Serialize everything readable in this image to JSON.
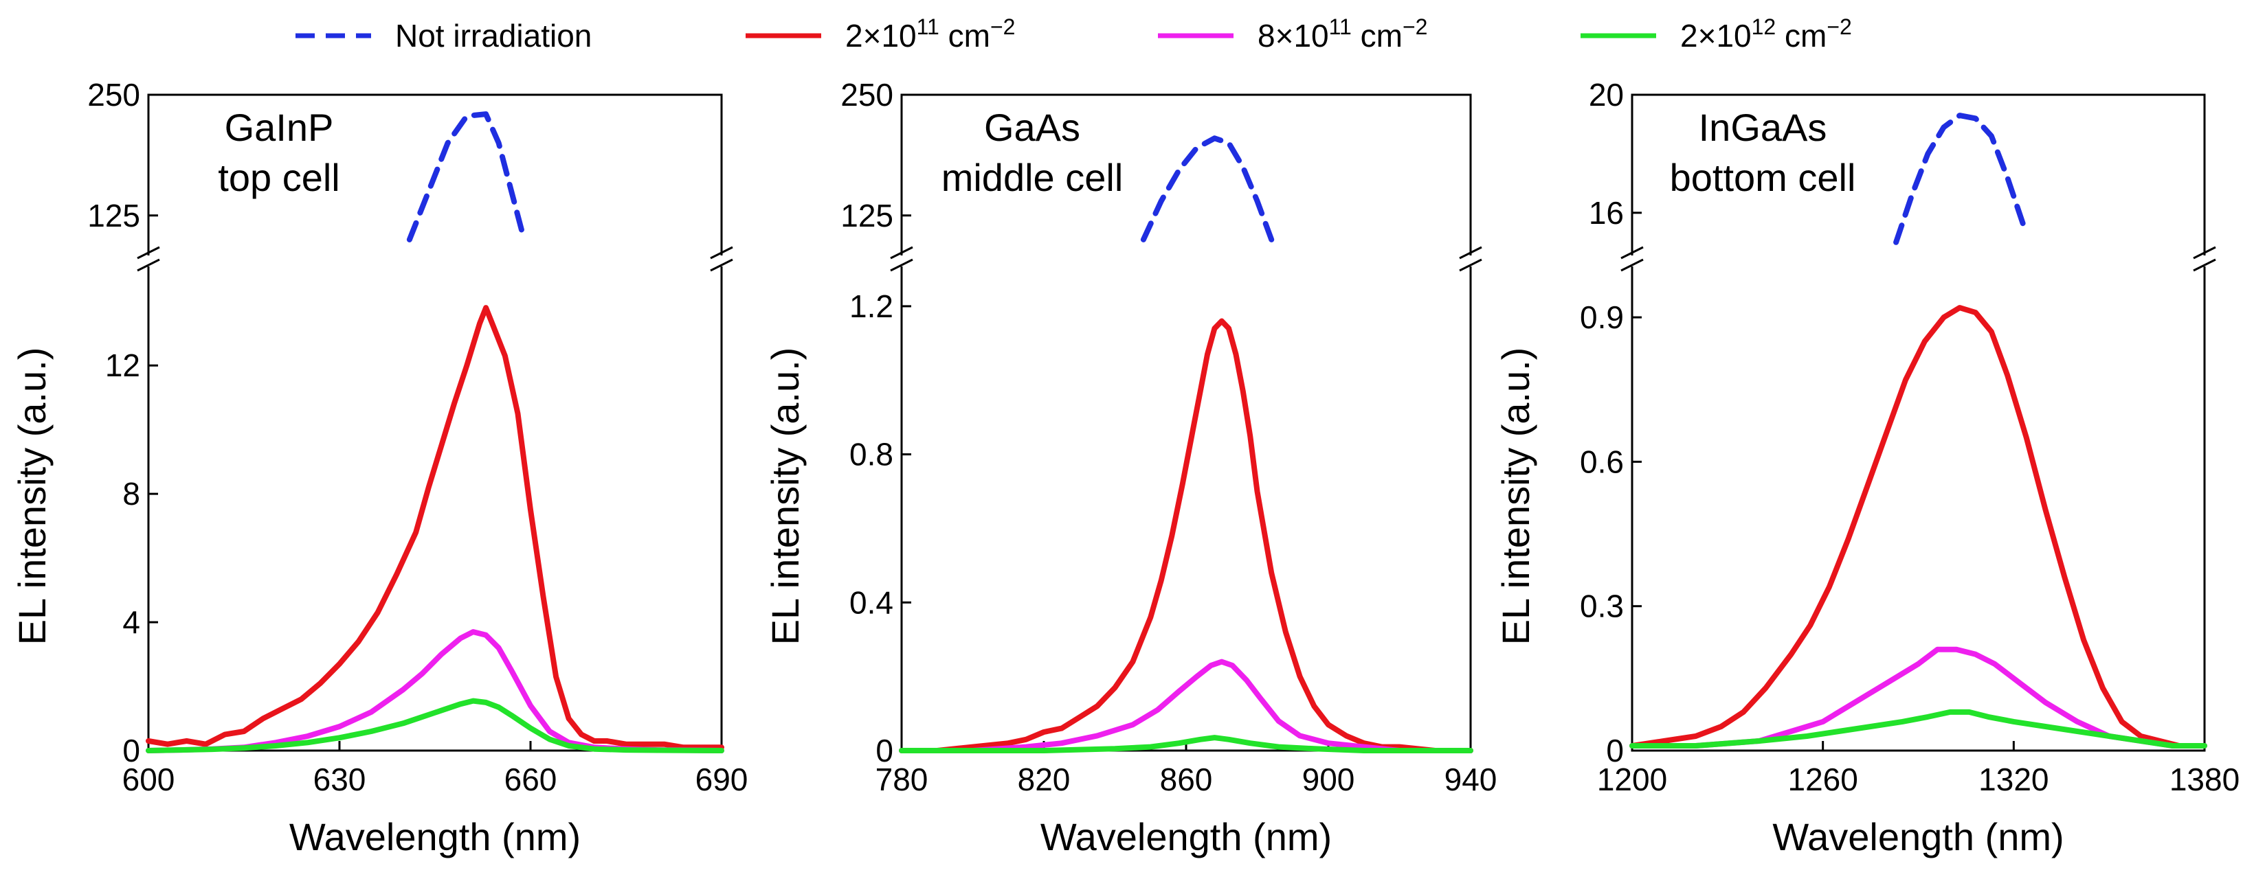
{
  "colors": {
    "not_irradiated": "#1f2ee0",
    "fluence_2e11": "#e8141b",
    "fluence_8e11": "#ee20ee",
    "fluence_2e12": "#22e22a"
  },
  "legend": [
    {
      "key": "not_irradiated",
      "label": "Not irradiation",
      "style": "dashed"
    },
    {
      "key": "fluence_2e11",
      "label": "2×10",
      "sup": "11",
      "unit": " cm",
      "unit_sup": "−2",
      "style": "solid"
    },
    {
      "key": "fluence_8e11",
      "label": "8×10",
      "sup": "11",
      "unit": " cm",
      "unit_sup": "−2",
      "style": "solid"
    },
    {
      "key": "fluence_2e12",
      "label": "2×10",
      "sup": "12",
      "unit": " cm",
      "unit_sup": "−2",
      "style": "solid"
    }
  ],
  "chart_data": [
    {
      "type": "line",
      "panel": "GaInP",
      "label_line1": "GaInP",
      "label_line2": "top cell",
      "xlabel": "Wavelength (nm)",
      "ylabel": "EL intensity (a.u.)",
      "xlim": [
        600,
        690
      ],
      "xticks": [
        600,
        630,
        660,
        690
      ],
      "xtick_labels": [
        "600",
        "630",
        "660",
        "690"
      ],
      "ylim_lower": [
        0,
        15
      ],
      "yticks_lower": [
        0,
        4,
        8,
        12
      ],
      "ytick_labels_lower": [
        "0",
        "4",
        "8",
        "12"
      ],
      "ylim_upper": [
        85,
        250
      ],
      "yticks_upper": [
        125,
        250
      ],
      "ytick_labels_upper": [
        "125",
        "250"
      ],
      "series": [
        {
          "name": "Not irradiation",
          "key": "not_irradiated",
          "axis": "upper",
          "x": [
            641,
            644,
            647,
            650,
            653,
            655,
            657,
            659
          ],
          "y": [
            100,
            150,
            200,
            228,
            230,
            200,
            150,
            100
          ]
        },
        {
          "name": "2×10^11 cm^-2",
          "key": "fluence_2e11",
          "axis": "lower",
          "x": [
            600,
            603,
            606,
            609,
            612,
            615,
            618,
            621,
            624,
            627,
            630,
            633,
            636,
            639,
            642,
            644,
            646,
            648,
            650,
            652,
            653,
            654,
            656,
            658,
            660,
            662,
            664,
            666,
            668,
            670,
            672,
            675,
            678,
            681,
            684,
            687,
            690
          ],
          "y": [
            0.3,
            0.2,
            0.3,
            0.2,
            0.5,
            0.6,
            1.0,
            1.3,
            1.6,
            2.1,
            2.7,
            3.4,
            4.3,
            5.5,
            6.8,
            8.2,
            9.5,
            10.8,
            12.0,
            13.3,
            13.8,
            13.3,
            12.3,
            10.5,
            7.5,
            4.8,
            2.3,
            1.0,
            0.5,
            0.3,
            0.3,
            0.2,
            0.2,
            0.2,
            0.1,
            0.1,
            0.1
          ]
        },
        {
          "name": "8×10^11 cm^-2",
          "key": "fluence_8e11",
          "axis": "lower",
          "x": [
            600,
            605,
            610,
            615,
            620,
            625,
            630,
            635,
            640,
            643,
            646,
            649,
            651,
            653,
            655,
            657,
            660,
            663,
            666,
            670,
            675,
            680,
            690
          ],
          "y": [
            0.0,
            0.02,
            0.05,
            0.1,
            0.25,
            0.45,
            0.75,
            1.2,
            1.9,
            2.4,
            3.0,
            3.5,
            3.7,
            3.6,
            3.2,
            2.5,
            1.4,
            0.6,
            0.25,
            0.1,
            0.05,
            0.02,
            0.0
          ]
        },
        {
          "name": "2×10^12 cm^-2",
          "key": "fluence_2e12",
          "axis": "lower",
          "x": [
            600,
            605,
            610,
            615,
            620,
            625,
            630,
            635,
            640,
            643,
            646,
            649,
            651,
            653,
            655,
            657,
            660,
            663,
            666,
            670,
            675,
            680,
            690
          ],
          "y": [
            0.0,
            0.02,
            0.04,
            0.08,
            0.15,
            0.25,
            0.4,
            0.6,
            0.85,
            1.05,
            1.25,
            1.45,
            1.55,
            1.5,
            1.35,
            1.1,
            0.7,
            0.35,
            0.15,
            0.05,
            0.02,
            0.01,
            0.0
          ]
        }
      ]
    },
    {
      "type": "line",
      "panel": "GaAs",
      "label_line1": "GaAs",
      "label_line2": "middle cell",
      "xlabel": "Wavelength (nm)",
      "ylabel": "EL intensity (a.u.)",
      "xlim": [
        780,
        940
      ],
      "xticks": [
        780,
        820,
        860,
        900,
        940
      ],
      "xtick_labels": [
        "780",
        "820",
        "860",
        "900",
        "940"
      ],
      "ylim_lower": [
        0,
        1.3
      ],
      "yticks_lower": [
        0,
        0.4,
        0.8,
        1.2
      ],
      "ytick_labels_lower": [
        "0",
        "0.4",
        "0.8",
        "1.2"
      ],
      "ylim_upper": [
        85,
        250
      ],
      "yticks_upper": [
        125,
        250
      ],
      "ytick_labels_upper": [
        "125",
        "250"
      ],
      "series": [
        {
          "name": "Not irradiation",
          "key": "not_irradiated",
          "axis": "upper",
          "x": [
            848,
            853,
            858,
            863,
            868,
            872,
            876,
            880,
            884
          ],
          "y": [
            100,
            140,
            172,
            195,
            205,
            200,
            175,
            140,
            100
          ]
        },
        {
          "name": "2×10^11 cm^-2",
          "key": "fluence_2e11",
          "axis": "lower",
          "x": [
            780,
            790,
            800,
            810,
            815,
            820,
            825,
            830,
            835,
            840,
            845,
            850,
            853,
            856,
            859,
            862,
            864,
            866,
            868,
            870,
            872,
            874,
            876,
            878,
            880,
            884,
            888,
            892,
            896,
            900,
            905,
            910,
            915,
            920,
            930,
            940
          ],
          "y": [
            0.0,
            0.0,
            0.01,
            0.02,
            0.03,
            0.05,
            0.06,
            0.09,
            0.12,
            0.17,
            0.24,
            0.36,
            0.46,
            0.58,
            0.72,
            0.87,
            0.97,
            1.07,
            1.14,
            1.16,
            1.14,
            1.07,
            0.97,
            0.85,
            0.7,
            0.48,
            0.32,
            0.2,
            0.12,
            0.07,
            0.04,
            0.02,
            0.01,
            0.01,
            0.0,
            0.0
          ]
        },
        {
          "name": "8×10^11 cm^-2",
          "key": "fluence_8e11",
          "axis": "lower",
          "x": [
            780,
            800,
            815,
            825,
            835,
            845,
            852,
            858,
            863,
            867,
            870,
            873,
            877,
            881,
            886,
            892,
            900,
            910,
            920,
            940
          ],
          "y": [
            0.0,
            0.0,
            0.01,
            0.02,
            0.04,
            0.07,
            0.11,
            0.16,
            0.2,
            0.23,
            0.24,
            0.23,
            0.19,
            0.14,
            0.08,
            0.04,
            0.02,
            0.01,
            0.0,
            0.0
          ]
        },
        {
          "name": "2×10^12 cm^-2",
          "key": "fluence_2e12",
          "axis": "lower",
          "x": [
            780,
            820,
            840,
            850,
            858,
            864,
            868,
            872,
            878,
            886,
            896,
            910,
            940
          ],
          "y": [
            0.0,
            0.0,
            0.005,
            0.01,
            0.02,
            0.03,
            0.035,
            0.03,
            0.02,
            0.01,
            0.005,
            0.0,
            0.0
          ]
        }
      ]
    },
    {
      "type": "line",
      "panel": "InGaAs",
      "label_line1": "InGaAs",
      "label_line2": "bottom cell",
      "xlabel": "Wavelength (nm)",
      "ylabel": "EL intensity (a.u.)",
      "xlim": [
        1200,
        1380
      ],
      "xticks": [
        1200,
        1260,
        1320,
        1380
      ],
      "xtick_labels": [
        "1200",
        "1260",
        "1320",
        "1380"
      ],
      "ylim_lower": [
        0,
        1.0
      ],
      "yticks_lower": [
        0,
        0.3,
        0.6,
        0.9
      ],
      "ytick_labels_lower": [
        "0",
        "0.3",
        "0.6",
        "0.9"
      ],
      "ylim_upper": [
        14.6,
        20
      ],
      "yticks_upper": [
        16,
        20
      ],
      "ytick_labels_upper": [
        "16",
        "20"
      ],
      "series": [
        {
          "name": "Not irradiation",
          "key": "not_irradiated",
          "axis": "upper",
          "x": [
            1283,
            1288,
            1293,
            1298,
            1303,
            1308,
            1313,
            1318,
            1323
          ],
          "y": [
            15.0,
            16.6,
            18.0,
            18.9,
            19.3,
            19.2,
            18.6,
            17.2,
            15.6
          ]
        },
        {
          "name": "2×10^11 cm^-2",
          "key": "fluence_2e11",
          "axis": "lower",
          "x": [
            1200,
            1210,
            1220,
            1228,
            1235,
            1242,
            1250,
            1256,
            1262,
            1268,
            1274,
            1280,
            1286,
            1292,
            1298,
            1303,
            1308,
            1313,
            1318,
            1324,
            1330,
            1336,
            1342,
            1348,
            1354,
            1360,
            1366,
            1372,
            1380
          ],
          "y": [
            0.01,
            0.02,
            0.03,
            0.05,
            0.08,
            0.13,
            0.2,
            0.26,
            0.34,
            0.44,
            0.55,
            0.66,
            0.77,
            0.85,
            0.9,
            0.92,
            0.91,
            0.87,
            0.78,
            0.65,
            0.5,
            0.36,
            0.23,
            0.13,
            0.06,
            0.03,
            0.02,
            0.01,
            0.01
          ]
        },
        {
          "name": "8×10^11 cm^-2",
          "key": "fluence_8e11",
          "axis": "lower",
          "x": [
            1200,
            1220,
            1240,
            1250,
            1260,
            1270,
            1280,
            1290,
            1296,
            1302,
            1308,
            1314,
            1322,
            1330,
            1340,
            1350,
            1360,
            1370,
            1380
          ],
          "y": [
            0.01,
            0.01,
            0.02,
            0.04,
            0.06,
            0.1,
            0.14,
            0.18,
            0.21,
            0.21,
            0.2,
            0.18,
            0.14,
            0.1,
            0.06,
            0.03,
            0.02,
            0.01,
            0.01
          ]
        },
        {
          "name": "2×10^12 cm^-2",
          "key": "fluence_2e12",
          "axis": "lower",
          "x": [
            1200,
            1220,
            1240,
            1255,
            1265,
            1275,
            1285,
            1293,
            1300,
            1306,
            1312,
            1320,
            1330,
            1340,
            1350,
            1360,
            1370,
            1380
          ],
          "y": [
            0.01,
            0.01,
            0.02,
            0.03,
            0.04,
            0.05,
            0.06,
            0.07,
            0.08,
            0.08,
            0.07,
            0.06,
            0.05,
            0.04,
            0.03,
            0.02,
            0.01,
            0.01
          ]
        }
      ]
    }
  ]
}
